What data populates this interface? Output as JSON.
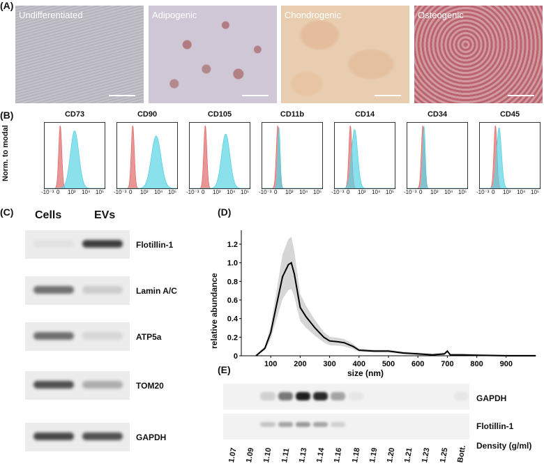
{
  "panels": {
    "a": "(A)",
    "b": "(B)",
    "c": "(C)",
    "d": "(D)",
    "e": "(E)"
  },
  "micrographs": [
    {
      "label": "Undifferentiated",
      "bg": "#bdbcc4"
    },
    {
      "label": "Adipogenic",
      "bg": "#c9c2d0"
    },
    {
      "label": "Chondrogenic",
      "bg": "#e6c9a9"
    },
    {
      "label": "Osteogenic",
      "bg": "#c7828a"
    }
  ],
  "flow": {
    "ylabel": "Norm. to modal",
    "tick_labels": [
      "-10⁻³",
      "0",
      "10³",
      "10⁴",
      "10⁵"
    ],
    "markers": [
      "CD73",
      "CD90",
      "CD105",
      "CD11b",
      "CD14",
      "CD34",
      "CD45"
    ],
    "colors": {
      "control": "#e06a6a",
      "stained": "#58d3e2"
    }
  },
  "western_c": {
    "columns": [
      "Cells",
      "EVs"
    ],
    "rows": [
      {
        "label": "Flotillin-1",
        "cells": 0.05,
        "evs": 0.85
      },
      {
        "label": "Lamin A/C",
        "cells": 0.6,
        "evs": 0.15
      },
      {
        "label": "ATP5a",
        "cells": 0.6,
        "evs": 0.1
      },
      {
        "label": "TOM20",
        "cells": 0.75,
        "evs": 0.3
      },
      {
        "label": "GAPDH",
        "cells": 0.8,
        "evs": 0.75
      }
    ]
  },
  "chart_data": {
    "type": "line",
    "xlabel": "size (nm)",
    "ylabel": "relative abundance",
    "xlim": [
      0,
      1000
    ],
    "ylim": [
      0,
      1.35
    ],
    "x_ticks": [
      "100",
      "200",
      "300",
      "400",
      "500",
      "600",
      "700",
      "800",
      "900"
    ],
    "y_ticks": [
      "0",
      "0.2",
      "0.4",
      "0.6",
      "0.8",
      "1.0",
      "1.2"
    ],
    "series": [
      {
        "x": [
          50,
          80,
          100,
          120,
          140,
          160,
          170,
          180,
          200,
          220,
          250,
          280,
          300,
          330,
          350,
          380,
          400,
          450,
          500,
          550,
          600,
          650,
          690,
          700,
          710,
          750,
          800,
          900,
          1000
        ],
        "values": [
          0,
          0.08,
          0.25,
          0.55,
          0.85,
          0.98,
          1.0,
          0.88,
          0.52,
          0.42,
          0.3,
          0.2,
          0.16,
          0.15,
          0.14,
          0.1,
          0.06,
          0.05,
          0.05,
          0.03,
          0.02,
          0.01,
          0.02,
          0.05,
          0.01,
          0.01,
          0.005,
          0,
          0
        ]
      }
    ],
    "band_color": "#d6d6d6",
    "line_color": "#000000"
  },
  "western_e": {
    "rows": [
      {
        "label": "GAPDH",
        "intensities": [
          0,
          0,
          0.15,
          0.55,
          0.95,
          0.9,
          0.35,
          0.05,
          0,
          0,
          0,
          0,
          0,
          0.05
        ]
      },
      {
        "label": "Flotillin-1",
        "intensities": [
          0,
          0,
          0.2,
          0.35,
          0.4,
          0.35,
          0.15,
          0,
          0,
          0,
          0,
          0,
          0,
          0
        ]
      }
    ],
    "fractions": [
      "1.07",
      "1.09",
      "1.10",
      "1.11",
      "1.13",
      "1.14",
      "1.16",
      "1.18",
      "1.19",
      "1.20",
      "1.21",
      "1.23",
      "1.25",
      "Bott."
    ],
    "density_label": "Density (g/ml)"
  }
}
